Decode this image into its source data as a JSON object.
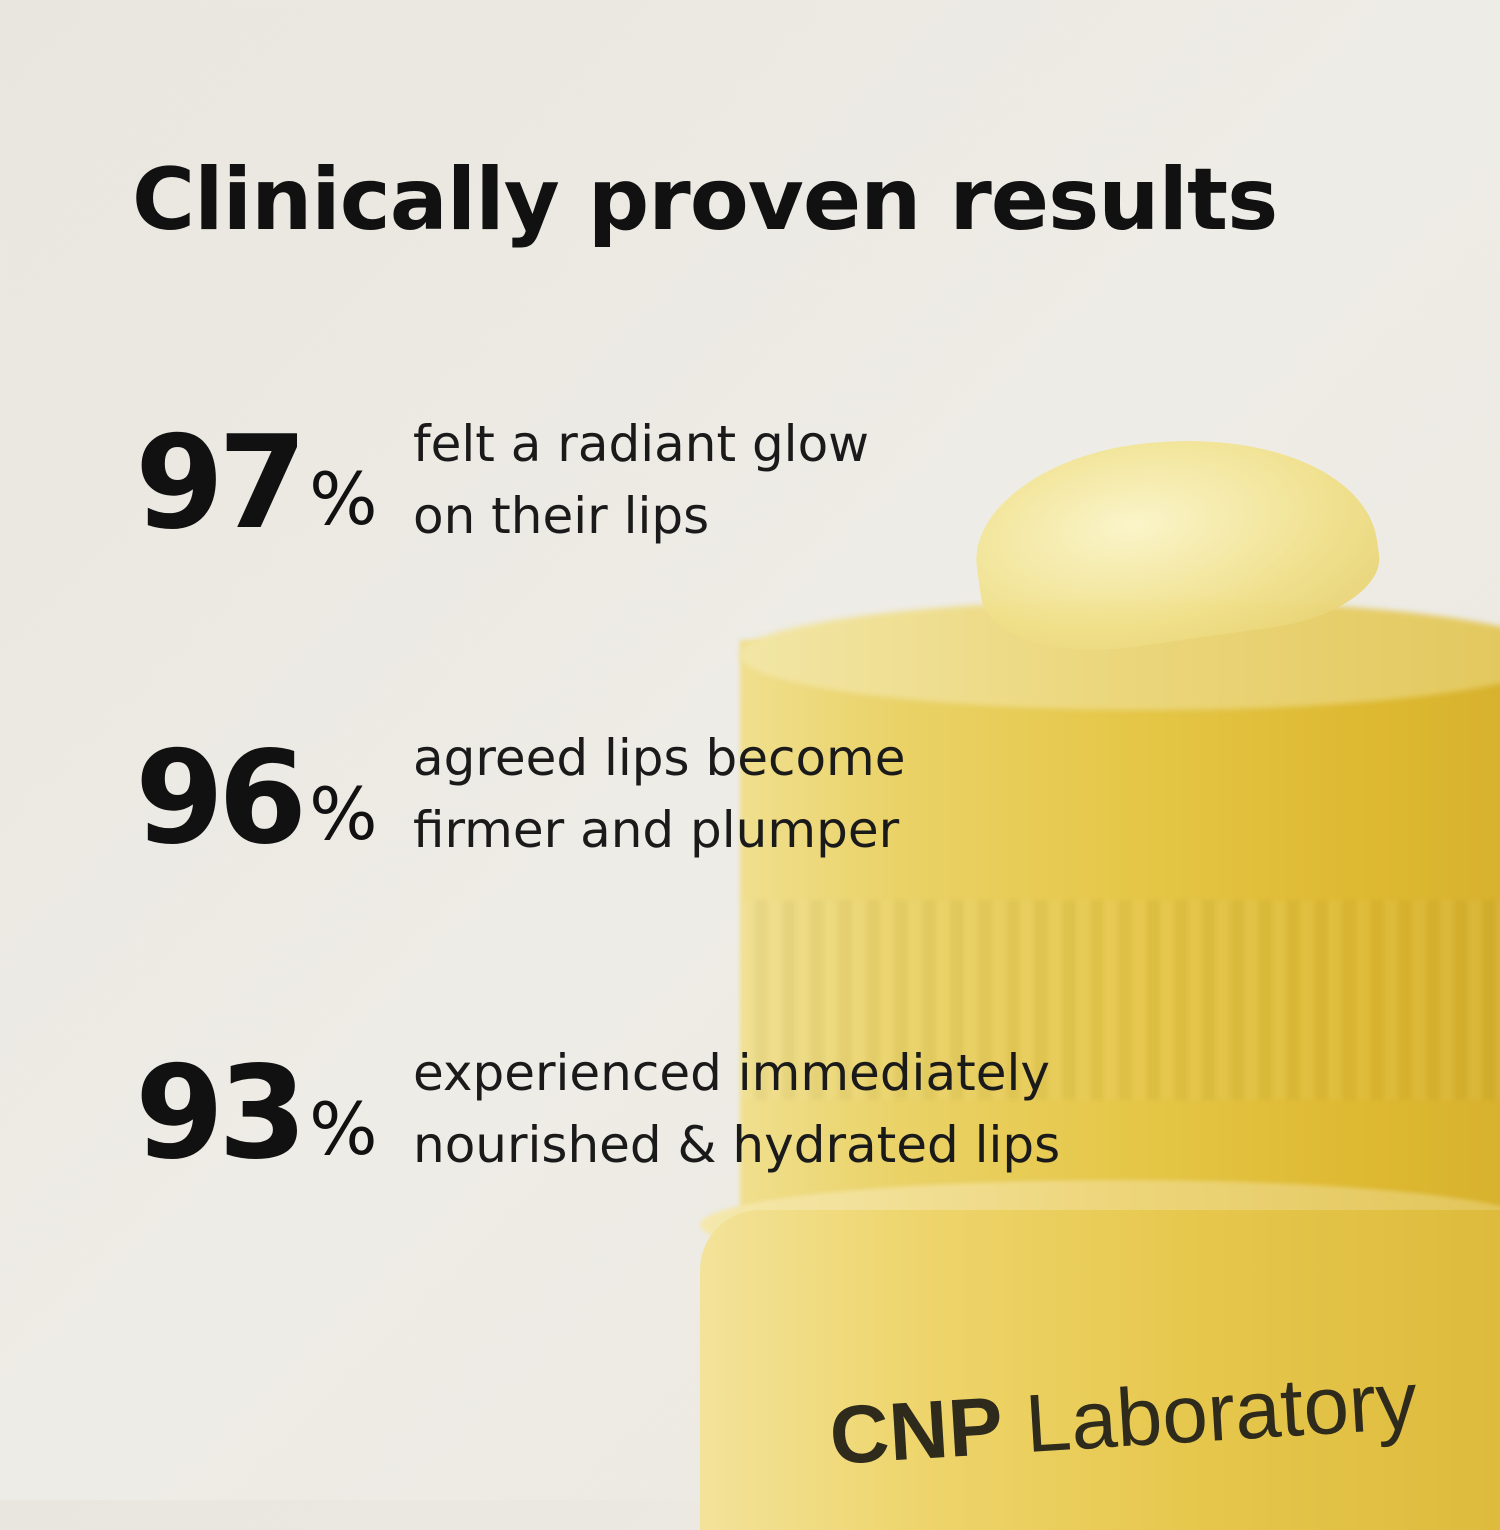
{
  "title": "Clinically proven results",
  "stats": [
    {
      "value": "97",
      "unit": "%",
      "line1": "felt a radiant glow",
      "line2": "on their lips"
    },
    {
      "value": "96",
      "unit": "%",
      "line1": "agreed lips become",
      "line2": "firmer and plumper"
    },
    {
      "value": "93",
      "unit": "%",
      "line1": "experienced immediately",
      "line2": "nourished & hydrated lips"
    }
  ],
  "brand": {
    "bold": "CNP",
    "regular": "Laboratory"
  },
  "colors": {
    "background": "#ebe8e1",
    "jar": "#e5c646",
    "text": "#111111"
  }
}
